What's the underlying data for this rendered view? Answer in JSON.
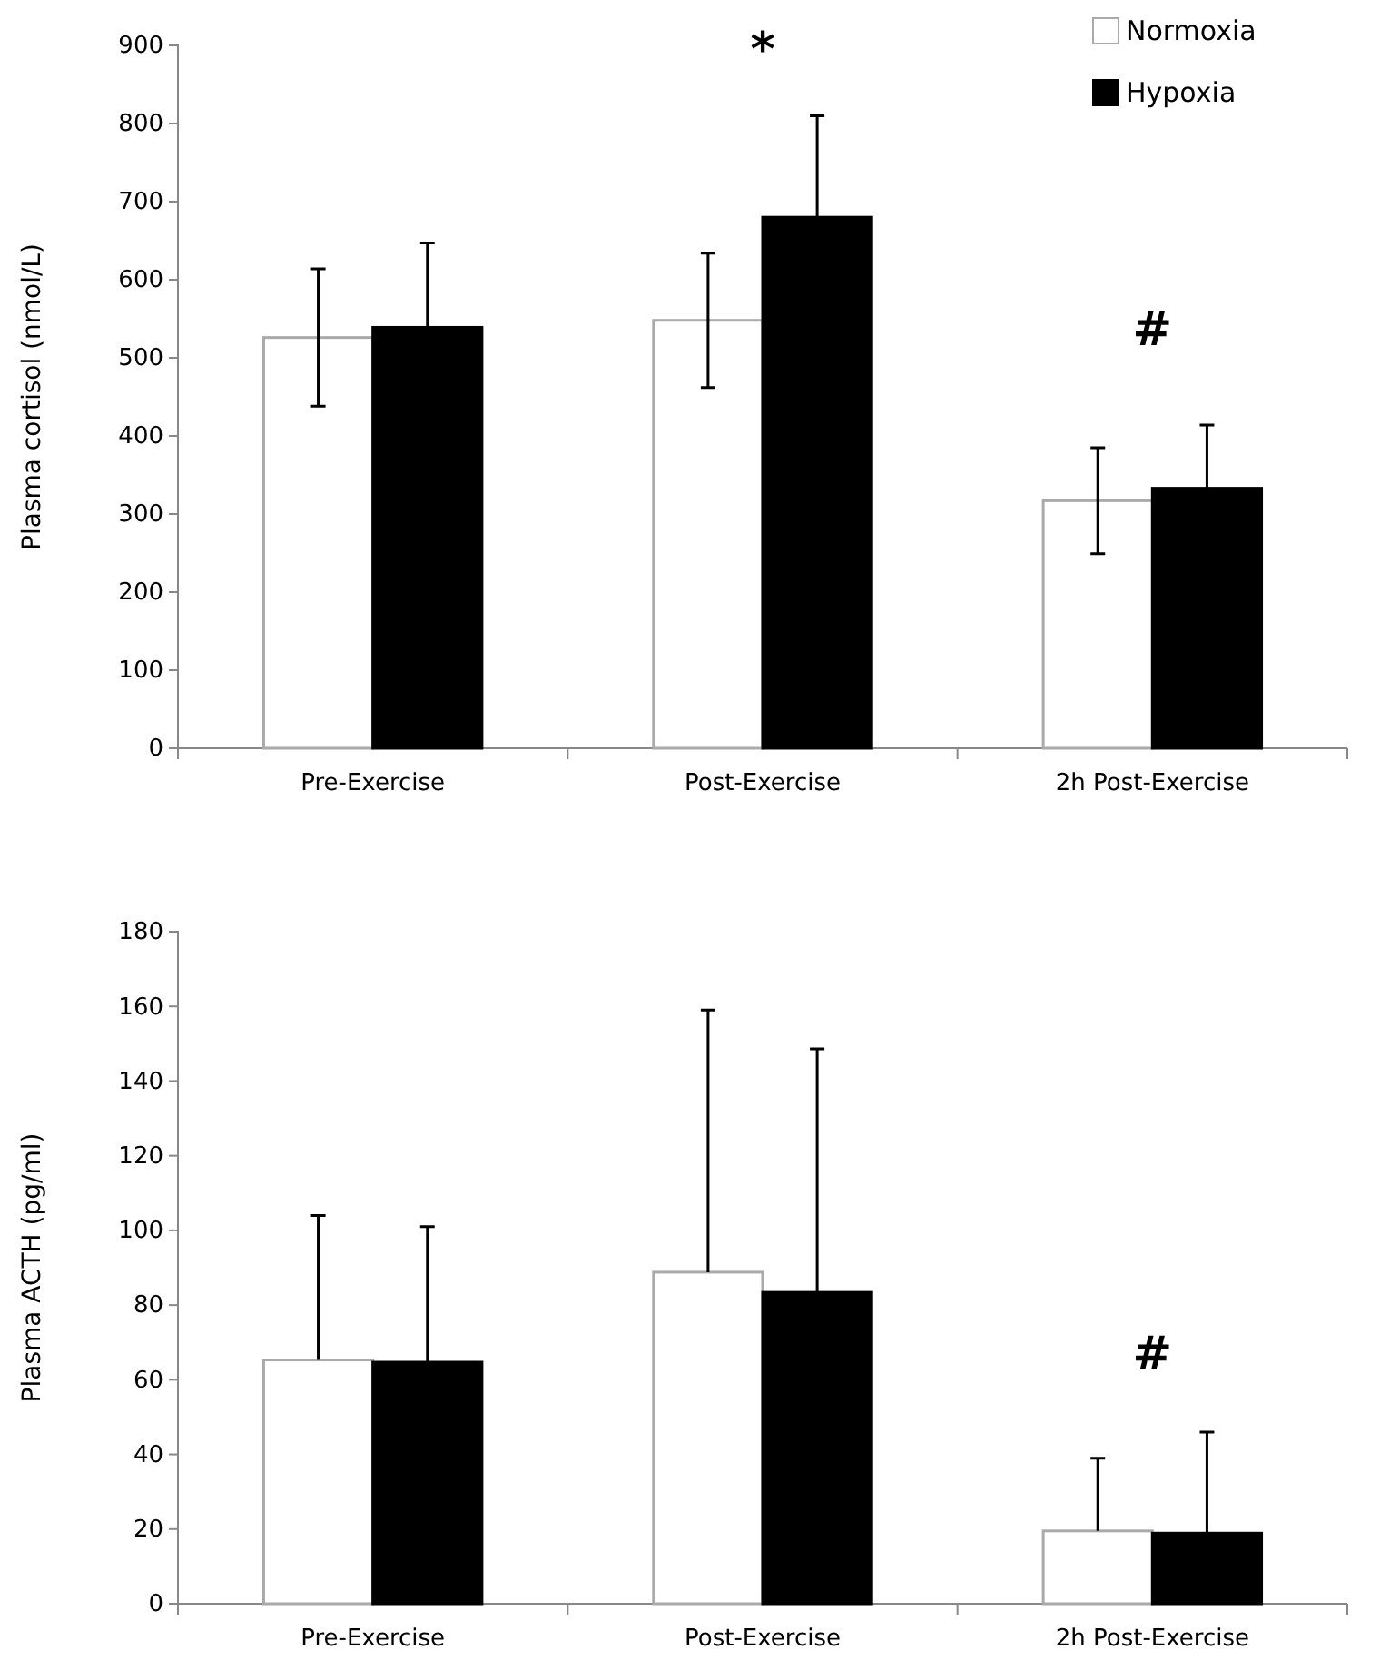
{
  "chart_data": [
    {
      "type": "bar",
      "ylabel": "Plasma cortisol (nmol/L)",
      "categories": [
        "Pre-Exercise",
        "Post-Exercise",
        "2h Post-Exercise"
      ],
      "series": [
        {
          "name": "Normoxia",
          "color": "#ffffff",
          "values": [
            526,
            548,
            317
          ],
          "errors": [
            88,
            86,
            68
          ]
        },
        {
          "name": "Hypoxia",
          "color": "#000000",
          "values": [
            539,
            680,
            333
          ],
          "errors": [
            108,
            130,
            81
          ]
        }
      ],
      "ylim": [
        0,
        900
      ],
      "yticks": [
        0,
        100,
        200,
        300,
        400,
        500,
        600,
        700,
        800,
        900
      ],
      "grid": false,
      "legend": "top right",
      "annotations": [
        "*",
        "#"
      ]
    },
    {
      "type": "bar",
      "ylabel": "Plasma ACTH (pg/ml)",
      "categories": [
        "Pre-Exercise",
        "Post-Exercise",
        "2h Post-Exercise"
      ],
      "series": [
        {
          "color": "#ffffff",
          "values": [
            65.3,
            88.8,
            19.5
          ],
          "errors": [
            [
              65.3,
              104
            ],
            [
              88.8,
              159
            ],
            [
              19.5,
              39
            ]
          ]
        },
        {
          "color": "#000000",
          "values": [
            64.7,
            83.4,
            18.9
          ],
          "errors": [
            [
              64.7,
              101
            ],
            [
              83.4,
              148.6
            ],
            [
              18.9,
              46
            ]
          ]
        }
      ],
      "ylim": [
        0,
        180
      ],
      "yticks": [
        0,
        20,
        40,
        60,
        80,
        100,
        120,
        140,
        160,
        180
      ],
      "grid": false,
      "legend": false,
      "annotations": [
        "#"
      ]
    }
  ]
}
